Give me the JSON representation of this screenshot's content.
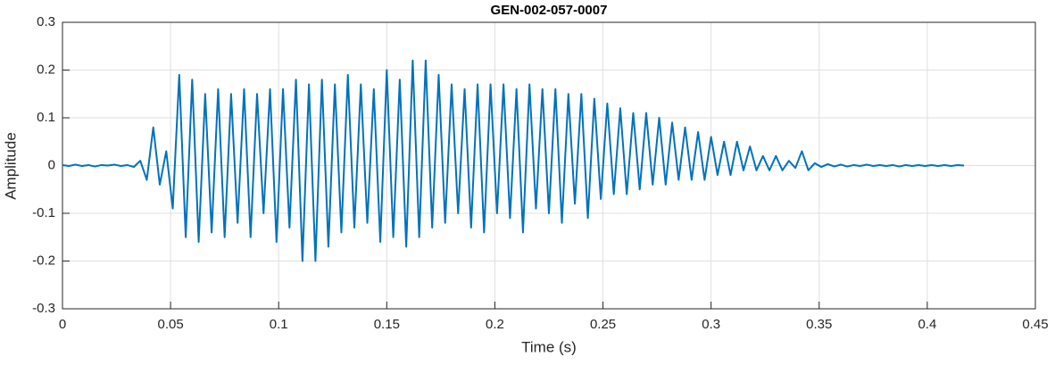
{
  "chart_data": {
    "type": "line",
    "title": "GEN-002-057-0007",
    "x_label": "Time (s)",
    "y_label": "Amplitude",
    "xlim": [
      0,
      0.45
    ],
    "xticks": [
      0,
      0.05,
      0.1,
      0.15,
      0.2,
      0.25,
      0.3,
      0.35,
      0.4,
      0.45
    ],
    "ylim": [
      -0.3,
      0.3
    ],
    "yticks": [
      -0.3,
      -0.2,
      -0.1,
      0,
      0.1,
      0.2,
      0.3
    ],
    "grid": true,
    "series": [
      {
        "name": "Amplitude",
        "color": "#0072bd",
        "x": [
          0,
          0.003,
          0.006,
          0.009,
          0.012,
          0.015,
          0.018,
          0.021,
          0.024,
          0.027,
          0.03,
          0.033,
          0.036,
          0.039,
          0.042,
          0.045,
          0.048,
          0.051,
          0.054,
          0.057,
          0.06,
          0.063,
          0.066,
          0.069,
          0.072,
          0.075,
          0.078,
          0.081,
          0.084,
          0.087,
          0.09,
          0.093,
          0.096,
          0.099,
          0.102,
          0.105,
          0.108,
          0.111,
          0.114,
          0.117,
          0.12,
          0.123,
          0.126,
          0.129,
          0.132,
          0.135,
          0.138,
          0.141,
          0.144,
          0.147,
          0.15,
          0.153,
          0.156,
          0.159,
          0.162,
          0.165,
          0.168,
          0.171,
          0.174,
          0.177,
          0.18,
          0.183,
          0.186,
          0.189,
          0.192,
          0.195,
          0.198,
          0.201,
          0.204,
          0.207,
          0.21,
          0.213,
          0.216,
          0.219,
          0.222,
          0.225,
          0.228,
          0.231,
          0.234,
          0.237,
          0.24,
          0.243,
          0.246,
          0.249,
          0.252,
          0.255,
          0.258,
          0.261,
          0.264,
          0.267,
          0.27,
          0.273,
          0.276,
          0.279,
          0.282,
          0.285,
          0.288,
          0.291,
          0.294,
          0.297,
          0.3,
          0.303,
          0.306,
          0.309,
          0.312,
          0.315,
          0.318,
          0.321,
          0.324,
          0.327,
          0.33,
          0.333,
          0.336,
          0.339,
          0.342,
          0.345,
          0.348,
          0.351,
          0.354,
          0.357,
          0.36,
          0.363,
          0.366,
          0.369,
          0.372,
          0.375,
          0.378,
          0.381,
          0.384,
          0.387,
          0.39,
          0.393,
          0.396,
          0.399,
          0.402,
          0.405,
          0.408,
          0.411,
          0.414,
          0.417
        ],
        "values": [
          0.001,
          -0.001,
          0.002,
          -0.001,
          0.001,
          -0.002,
          0.001,
          0,
          0.002,
          -0.001,
          0.001,
          -0.003,
          0.01,
          -0.03,
          0.08,
          -0.04,
          0.03,
          -0.09,
          0.19,
          -0.15,
          0.18,
          -0.16,
          0.15,
          -0.14,
          0.16,
          -0.15,
          0.15,
          -0.12,
          0.16,
          -0.15,
          0.15,
          -0.1,
          0.16,
          -0.16,
          0.16,
          -0.13,
          0.18,
          -0.2,
          0.17,
          -0.2,
          0.18,
          -0.17,
          0.17,
          -0.14,
          0.19,
          -0.13,
          0.17,
          -0.12,
          0.16,
          -0.16,
          0.2,
          -0.15,
          0.18,
          -0.17,
          0.22,
          -0.15,
          0.22,
          -0.13,
          0.19,
          -0.12,
          0.17,
          -0.1,
          0.16,
          -0.13,
          0.17,
          -0.14,
          0.17,
          -0.1,
          0.17,
          -0.11,
          0.16,
          -0.14,
          0.17,
          -0.09,
          0.16,
          -0.1,
          0.16,
          -0.12,
          0.15,
          -0.08,
          0.15,
          -0.11,
          0.14,
          -0.07,
          0.13,
          -0.06,
          0.12,
          -0.06,
          0.11,
          -0.05,
          0.11,
          -0.04,
          0.1,
          -0.04,
          0.09,
          -0.03,
          0.08,
          -0.03,
          0.07,
          -0.03,
          0.06,
          -0.02,
          0.05,
          -0.02,
          0.05,
          -0.01,
          0.04,
          -0.01,
          0.02,
          -0.01,
          0.02,
          -0.01,
          0.01,
          -0.005,
          0.03,
          -0.01,
          0.005,
          -0.003,
          0.003,
          -0.002,
          0.002,
          -0.002,
          0.001,
          -0.001,
          0.002,
          -0.001,
          0.001,
          -0.001,
          0.001,
          -0.002,
          0.001,
          -0.001,
          0.001,
          -0.001,
          0.001,
          -0.001,
          0.001,
          -0.001,
          0.001,
          0
        ]
      }
    ]
  }
}
